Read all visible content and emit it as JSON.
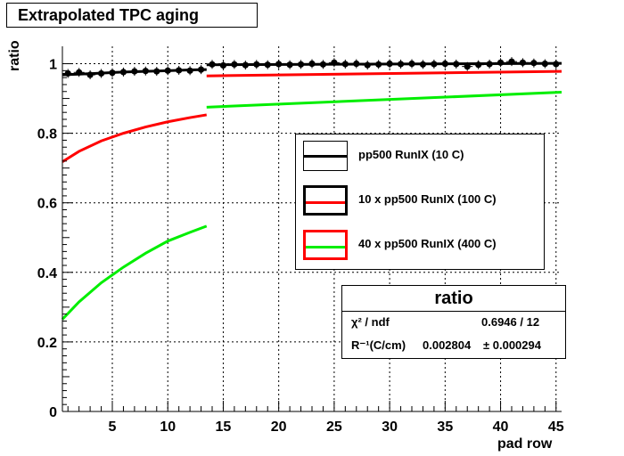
{
  "title": "Extrapolated TPC aging",
  "legend": [
    {
      "label": "pp500 RunIX (10 C)",
      "color": "#000000",
      "box_color": "#000000"
    },
    {
      "label": "10 x pp500 RunIX (100 C)",
      "color": "#ff0000",
      "box_color": "#000000"
    },
    {
      "label": "40 x pp500 RunIX (400 C)",
      "color": "#00ee00",
      "box_color": "#ff0000"
    }
  ],
  "stats": {
    "title": "ratio",
    "row1_label": "χ² / ndf",
    "row1_value": "0.6946 / 12",
    "row2_label": "R⁻¹(C/cm)",
    "row2_value": "0.002804",
    "row2_error": "± 0.000294"
  },
  "chart_data": {
    "type": "line",
    "title": "Extrapolated TPC aging",
    "xlabel": "pad row",
    "ylabel": "ratio",
    "xlim": [
      0.5,
      45.5
    ],
    "ylim": [
      0,
      1.05
    ],
    "xticks": [
      5,
      10,
      15,
      20,
      25,
      30,
      35,
      40,
      45
    ],
    "yticks": [
      0,
      0.2,
      0.4,
      0.6,
      0.8,
      1
    ],
    "grid": true,
    "legend_position": "right",
    "data_points": {
      "x": [
        1,
        2,
        3,
        4,
        5,
        6,
        7,
        8,
        9,
        10,
        11,
        12,
        13,
        14,
        15,
        16,
        17,
        18,
        19,
        20,
        21,
        22,
        23,
        24,
        25,
        26,
        27,
        28,
        29,
        30,
        31,
        32,
        33,
        34,
        35,
        36,
        37,
        38,
        39,
        40,
        41,
        42,
        43,
        44,
        45
      ],
      "y": [
        0.972,
        0.975,
        0.968,
        0.972,
        0.974,
        0.976,
        0.978,
        0.979,
        0.978,
        0.98,
        0.981,
        0.98,
        0.983,
        0.998,
        0.995,
        0.998,
        0.996,
        0.998,
        0.997,
        0.999,
        0.997,
        0.998,
        1.0,
        0.998,
        1.003,
        0.999,
        1.0,
        0.996,
        0.998,
        1.0,
        0.999,
        1.0,
        0.998,
        0.999,
        1.0,
        0.999,
        0.992,
        0.997,
        0.999,
        1.003,
        1.006,
        1.003,
        1.002,
        1.0,
        0.999
      ],
      "color": "#000000"
    },
    "series": [
      {
        "x_inner": [
          0.5,
          2,
          4,
          6,
          8,
          10,
          12,
          13.5
        ],
        "x_outer": [
          13.5,
          45.5
        ],
        "inner": [
          0.968,
          0.97,
          0.973,
          0.976,
          0.978,
          0.98,
          0.982,
          0.983
        ],
        "outer": [
          0.997,
          1.001
        ],
        "color": "#000000"
      },
      {
        "x_inner": [
          0.5,
          2,
          4,
          6,
          8,
          10,
          12,
          13.5
        ],
        "x_outer": [
          13.5,
          45.5
        ],
        "inner": [
          0.718,
          0.748,
          0.778,
          0.8,
          0.818,
          0.833,
          0.845,
          0.853
        ],
        "outer": [
          0.965,
          0.978
        ],
        "color": "#ff0000"
      },
      {
        "x_inner": [
          0.5,
          2,
          4,
          6,
          8,
          10,
          12,
          13.5
        ],
        "x_outer": [
          13.5,
          45.5
        ],
        "inner": [
          0.265,
          0.315,
          0.37,
          0.415,
          0.455,
          0.49,
          0.515,
          0.533
        ],
        "outer": [
          0.875,
          0.918
        ],
        "color": "#00ee00"
      }
    ]
  }
}
